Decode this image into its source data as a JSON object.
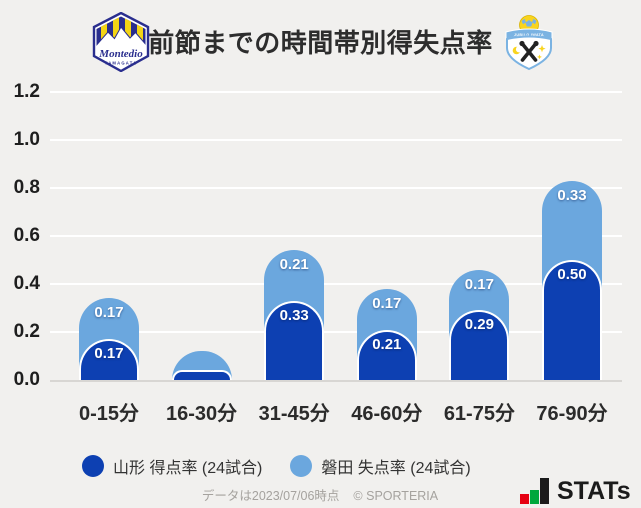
{
  "header": {
    "title": "前節までの時間帯別得失点率",
    "left_badge": "montedio-yamagata",
    "right_badge": "jubilo-iwata"
  },
  "chart_data": {
    "type": "bar",
    "stacked": true,
    "title": "前節までの時間帯別得失点率",
    "categories": [
      "0-15分",
      "16-30分",
      "31-45分",
      "46-60分",
      "61-75分",
      "76-90分"
    ],
    "series": [
      {
        "name": "山形 得点率 (24試合)",
        "color": "#0d40b2",
        "values": [
          0.17,
          0.04,
          0.33,
          0.21,
          0.29,
          0.5
        ],
        "value_labels": [
          "0.17",
          "",
          "0.33",
          "0.21",
          "0.29",
          "0.50"
        ]
      },
      {
        "name": "磐田 失点率 (24試合)",
        "color": "#6ba7de",
        "values": [
          0.17,
          0.08,
          0.21,
          0.17,
          0.17,
          0.33
        ],
        "value_labels": [
          "0.17",
          "",
          "0.21",
          "0.17",
          "0.17",
          "0.33"
        ]
      }
    ],
    "ylim": [
      0,
      1.2
    ],
    "yticks": [
      "1.2",
      "1.0",
      "0.8",
      "0.6",
      "0.4",
      "0.2",
      "0.0"
    ],
    "grid": true,
    "legend_position": "bottom"
  },
  "footer": {
    "note": "データは2023/07/06時点",
    "copyright": "© SPORTERIA",
    "brand_text": "STATs",
    "brand_bar_colors": [
      "#e60012",
      "#00a73c",
      "#1b1b1b"
    ]
  }
}
